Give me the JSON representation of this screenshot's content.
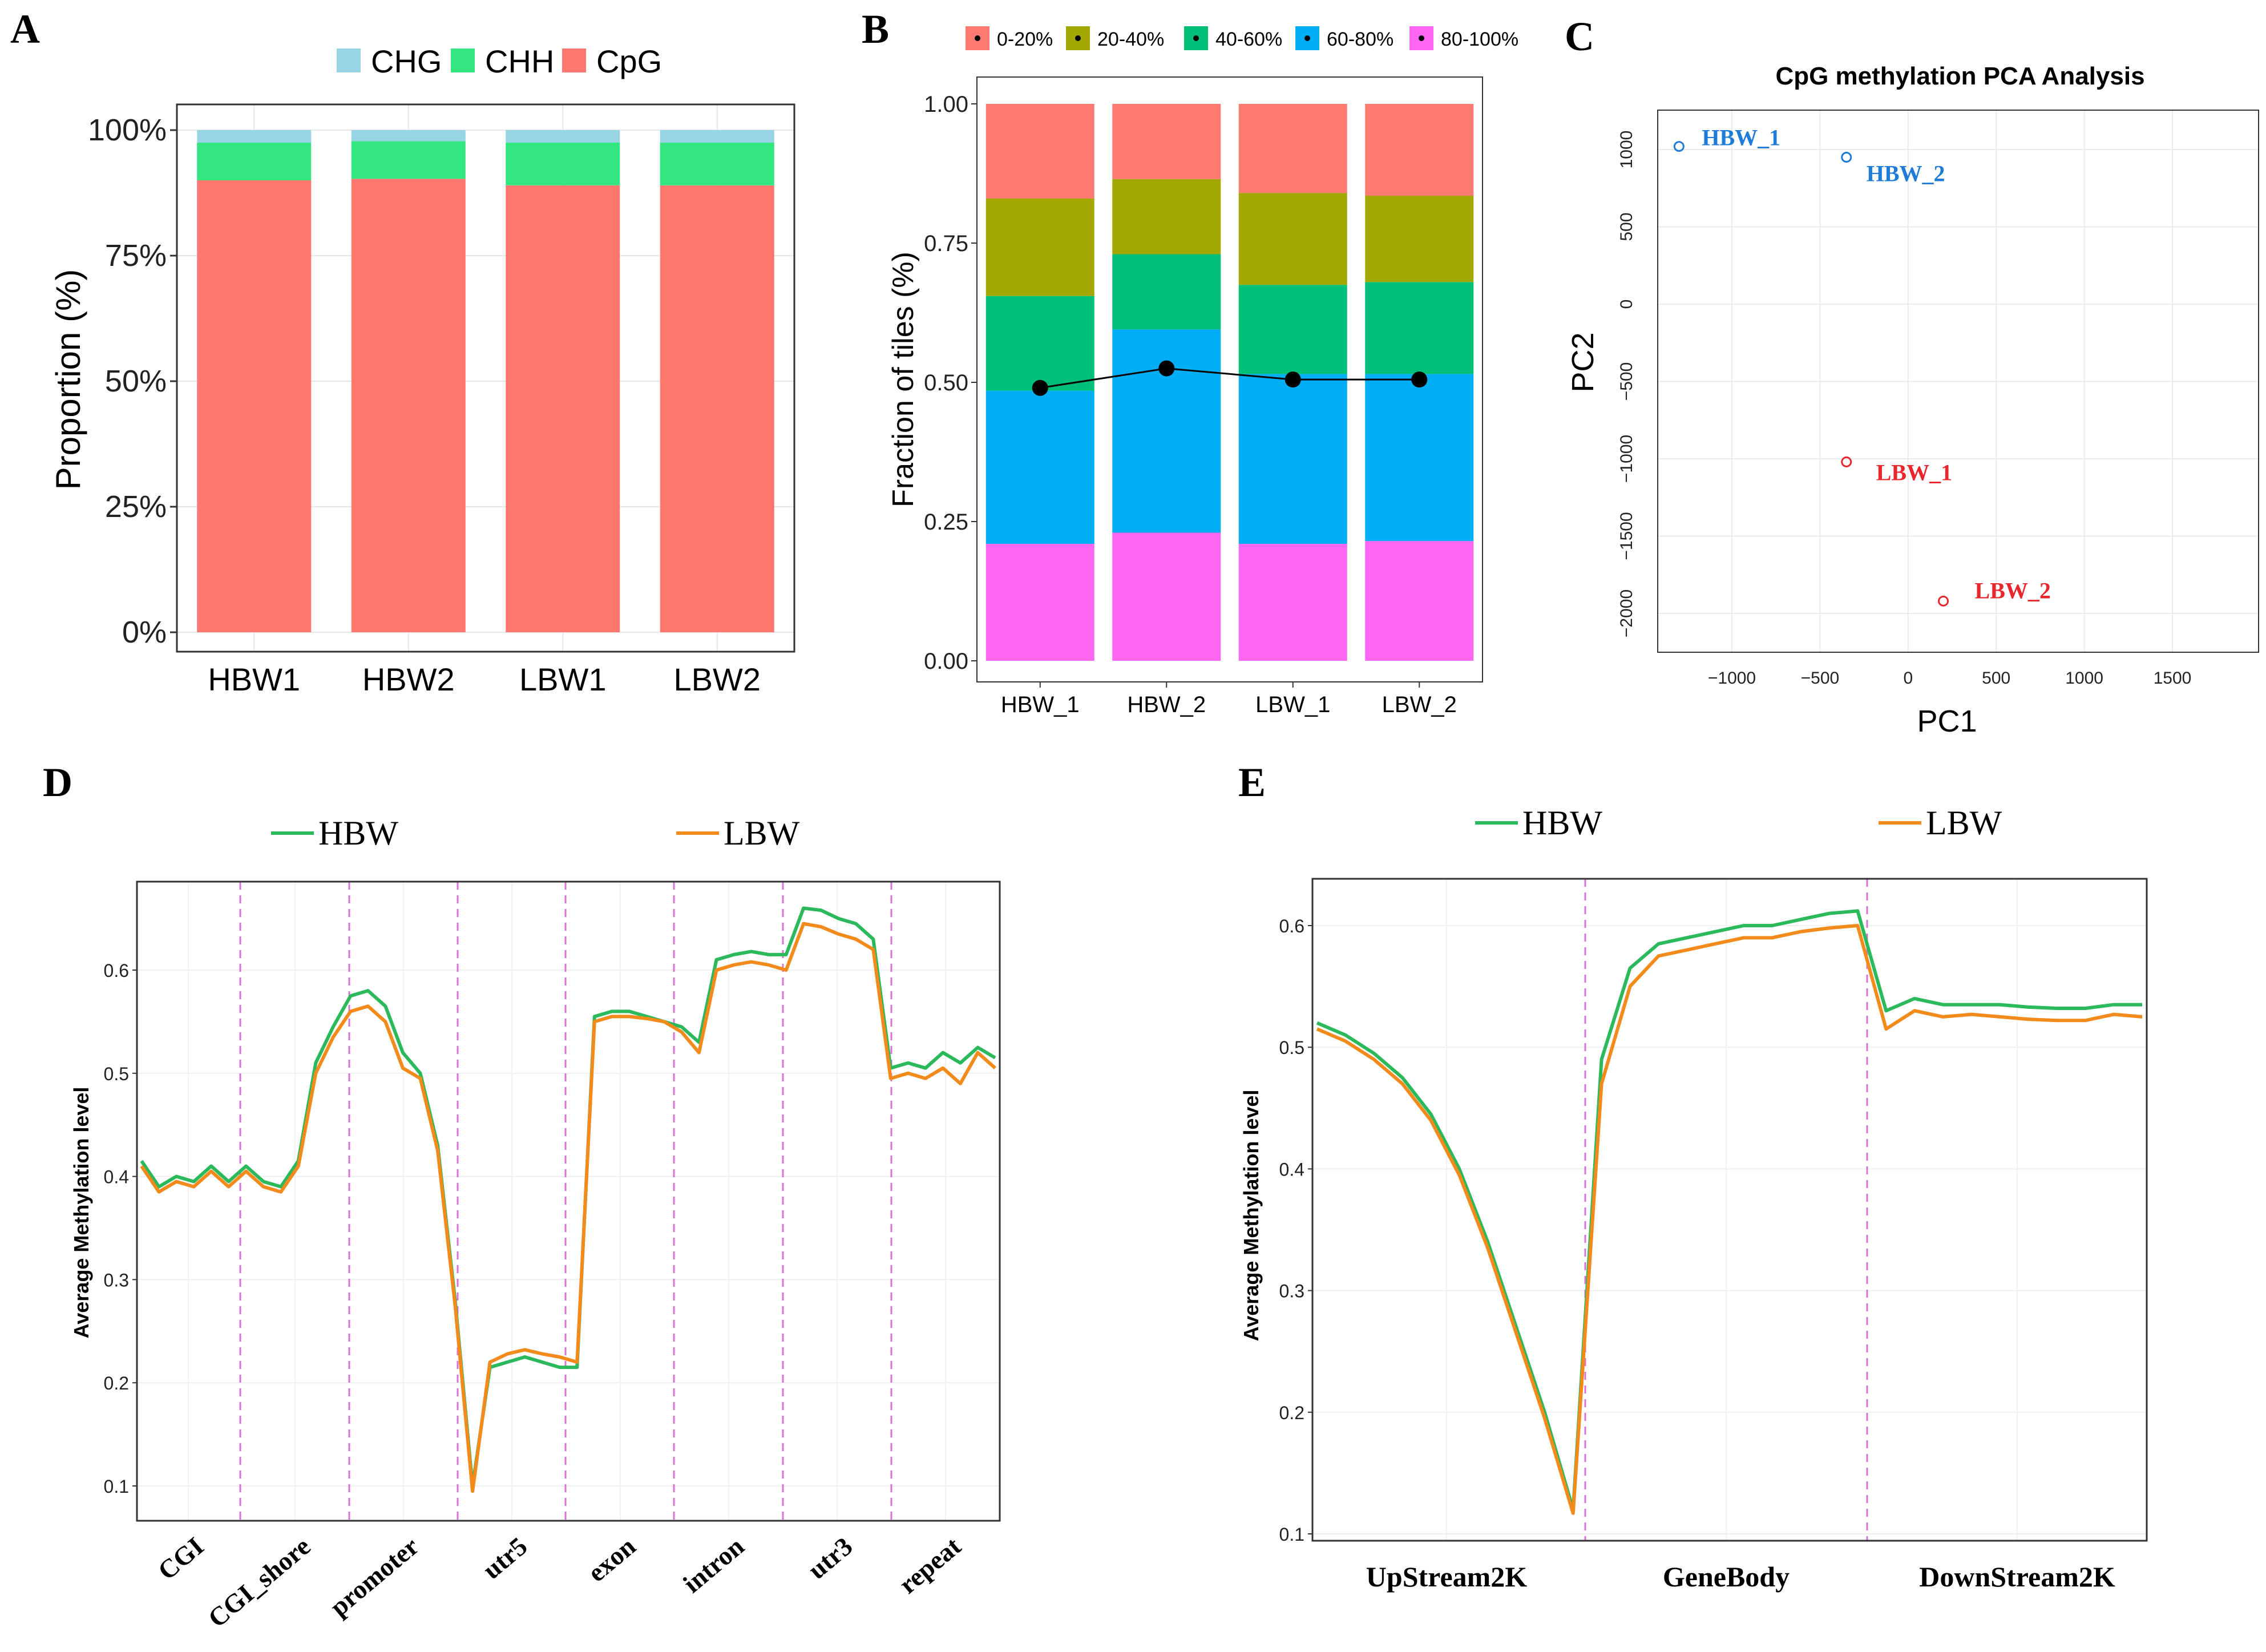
{
  "panels": {
    "A": {
      "letter": "A"
    },
    "B": {
      "letter": "B"
    },
    "C": {
      "letter": "C"
    },
    "D": {
      "letter": "D"
    },
    "E": {
      "letter": "E"
    }
  },
  "colors": {
    "CHG": "#98D5E4",
    "CHH": "#33E680",
    "CpG": "#FF776E",
    "b1": "#FF7A70",
    "b2": "#A3A800",
    "b3": "#00BF79",
    "b4": "#00AEF6",
    "b5": "#FF66F2",
    "hbw_pt": "#1E7BD7",
    "lbw_pt": "#E8262B",
    "hbw_line": "#2BB95B",
    "lbw_line": "#F28A1C",
    "divider": "#D873D8",
    "grid": "#E6E6E6"
  },
  "chart_data": [
    {
      "panel": "A",
      "type": "bar",
      "stacked": true,
      "categories": [
        "HBW1",
        "HBW2",
        "LBW1",
        "LBW2"
      ],
      "series": [
        {
          "name": "CpG",
          "values": [
            90.0,
            90.3,
            89.0,
            89.0
          ]
        },
        {
          "name": "CHH",
          "values": [
            7.5,
            7.5,
            8.5,
            8.5
          ]
        },
        {
          "name": "CHG",
          "values": [
            2.5,
            2.2,
            2.5,
            2.5
          ]
        }
      ],
      "legend": [
        "CHG",
        "CHH",
        "CpG"
      ],
      "ylabel": "Proportion (%)",
      "yticks": [
        "0%",
        "25%",
        "50%",
        "75%",
        "100%"
      ],
      "ylim": [
        0,
        100
      ]
    },
    {
      "panel": "B",
      "type": "bar",
      "stacked": true,
      "categories": [
        "HBW_1",
        "HBW_2",
        "LBW_1",
        "LBW_2"
      ],
      "series": [
        {
          "name": "80-100%",
          "values": [
            0.21,
            0.23,
            0.21,
            0.215
          ]
        },
        {
          "name": "60-80%",
          "values": [
            0.275,
            0.365,
            0.305,
            0.3
          ]
        },
        {
          "name": "40-60%",
          "values": [
            0.17,
            0.135,
            0.16,
            0.165
          ]
        },
        {
          "name": "20-40%",
          "values": [
            0.175,
            0.135,
            0.165,
            0.155
          ]
        },
        {
          "name": "0-20%",
          "values": [
            0.17,
            0.135,
            0.16,
            0.165
          ]
        }
      ],
      "legend": [
        "0-20%",
        "20-40%",
        "40-60%",
        "60-80%",
        "80-100%"
      ],
      "line_values": [
        0.49,
        0.525,
        0.505,
        0.505
      ],
      "ylabel": "Fraction of tiles (%)",
      "yticks": [
        "0.00",
        "0.25",
        "0.50",
        "0.75",
        "1.00"
      ],
      "ylim": [
        0,
        1
      ]
    },
    {
      "panel": "C",
      "type": "scatter",
      "title": "CpG methylation PCA Analysis",
      "xlabel": "PC1",
      "ylabel": "PC2",
      "xlim": [
        -1500,
        2000
      ],
      "ylim": [
        -2200,
        1150
      ],
      "xticks": [
        "−1000",
        "−500",
        "0",
        "500",
        "1000",
        "1500"
      ],
      "yticks": [
        "1000",
        "500",
        "0",
        "−500",
        "−1000",
        "−1500",
        "−2000"
      ],
      "points": [
        {
          "label": "HBW_1",
          "x": -1300,
          "y": 1020,
          "group": "HBW"
        },
        {
          "label": "HBW_2",
          "x": -350,
          "y": 950,
          "group": "HBW"
        },
        {
          "label": "LBW_1",
          "x": -350,
          "y": -1020,
          "group": "LBW"
        },
        {
          "label": "LBW_2",
          "x": 200,
          "y": -1920,
          "group": "LBW"
        }
      ]
    },
    {
      "panel": "D",
      "type": "line",
      "ylabel": "Average Methylation level",
      "ylim": [
        0.07,
        0.69
      ],
      "yticks": [
        "0.1",
        "0.2",
        "0.3",
        "0.4",
        "0.5",
        "0.6"
      ],
      "regions": [
        "CGI",
        "CGI_shore",
        "promoter",
        "utr5",
        "exon",
        "intron",
        "utr3",
        "repeat"
      ],
      "legend": [
        "HBW",
        "LBW"
      ],
      "series": [
        {
          "name": "HBW",
          "values": [
            0.415,
            0.39,
            0.4,
            0.395,
            0.41,
            0.395,
            0.41,
            0.395,
            0.39,
            0.415,
            0.51,
            0.545,
            0.575,
            0.58,
            0.565,
            0.52,
            0.5,
            0.43,
            0.28,
            0.1,
            0.215,
            0.22,
            0.225,
            0.22,
            0.215,
            0.215,
            0.555,
            0.56,
            0.56,
            0.555,
            0.55,
            0.545,
            0.53,
            0.61,
            0.615,
            0.618,
            0.615,
            0.615,
            0.66,
            0.658,
            0.65,
            0.645,
            0.63,
            0.505,
            0.51,
            0.505,
            0.52,
            0.51,
            0.525,
            0.515
          ]
        },
        {
          "name": "LBW",
          "values": [
            0.41,
            0.385,
            0.395,
            0.39,
            0.405,
            0.39,
            0.405,
            0.39,
            0.385,
            0.41,
            0.5,
            0.535,
            0.56,
            0.565,
            0.55,
            0.505,
            0.495,
            0.425,
            0.275,
            0.095,
            0.22,
            0.228,
            0.232,
            0.228,
            0.225,
            0.22,
            0.55,
            0.555,
            0.555,
            0.553,
            0.55,
            0.54,
            0.52,
            0.6,
            0.605,
            0.608,
            0.605,
            0.6,
            0.645,
            0.642,
            0.635,
            0.63,
            0.62,
            0.495,
            0.5,
            0.495,
            0.505,
            0.49,
            0.52,
            0.505
          ]
        }
      ]
    },
    {
      "panel": "E",
      "type": "line",
      "ylabel": "Average Methylation level",
      "ylim": [
        0.1,
        0.62
      ],
      "yticks": [
        "0.1",
        "0.2",
        "0.3",
        "0.4",
        "0.5",
        "0.6"
      ],
      "regions": [
        "UpStream2K",
        "GeneBody",
        "DownStream2K"
      ],
      "legend": [
        "HBW",
        "LBW"
      ],
      "series": [
        {
          "name": "HBW",
          "values": [
            0.52,
            0.51,
            0.495,
            0.475,
            0.445,
            0.4,
            0.34,
            0.27,
            0.2,
            0.12,
            0.49,
            0.565,
            0.585,
            0.59,
            0.595,
            0.6,
            0.6,
            0.605,
            0.61,
            0.612,
            0.53,
            0.54,
            0.535,
            0.535,
            0.535,
            0.533,
            0.532,
            0.532,
            0.535,
            0.535
          ]
        },
        {
          "name": "LBW",
          "values": [
            0.515,
            0.505,
            0.49,
            0.47,
            0.44,
            0.395,
            0.335,
            0.265,
            0.195,
            0.117,
            0.47,
            0.55,
            0.575,
            0.58,
            0.585,
            0.59,
            0.59,
            0.595,
            0.598,
            0.6,
            0.515,
            0.53,
            0.525,
            0.527,
            0.525,
            0.523,
            0.522,
            0.522,
            0.527,
            0.525
          ]
        }
      ]
    }
  ]
}
